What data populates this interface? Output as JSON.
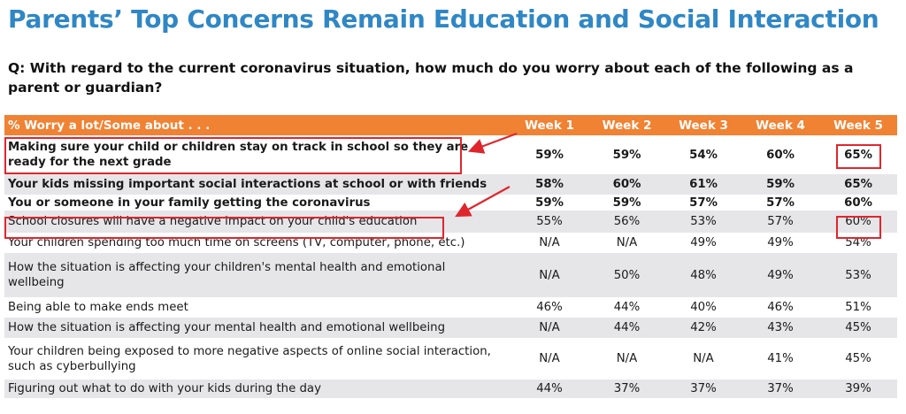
{
  "title": "Parents’ Top Concerns Remain Education and Social Interaction",
  "question": "Q: With regard to the current coronavirus situation, how much do you worry about each of the following as a parent or guardian?",
  "colors": {
    "title": "#2f87c5",
    "header_bg": "#f08234",
    "row_shade": "#e6e6e9",
    "highlight": "#e0262d"
  },
  "chart_data": {
    "type": "table",
    "header": "% Worry a lot/Some about . . .",
    "columns": [
      "Week 1",
      "Week 2",
      "Week 3",
      "Week 4",
      "Week 5"
    ],
    "rows": [
      {
        "label": "Making sure your child or children stay on track in school so they are ready for the next grade",
        "values": [
          "59%",
          "59%",
          "54%",
          "60%",
          "65%"
        ],
        "bold": true,
        "highlighted": true
      },
      {
        "label": "Your kids missing important social interactions at school or with friends",
        "values": [
          "58%",
          "60%",
          "61%",
          "59%",
          "65%"
        ],
        "bold": true,
        "highlighted": false
      },
      {
        "label": "You or someone in your family getting the coronavirus",
        "values": [
          "59%",
          "59%",
          "57%",
          "57%",
          "60%"
        ],
        "bold": true,
        "highlighted": false
      },
      {
        "label": "School closures will have a negative impact on your child's education",
        "values": [
          "55%",
          "56%",
          "53%",
          "57%",
          "60%"
        ],
        "bold": false,
        "highlighted": true
      },
      {
        "label": "Your children spending too much time on screens (TV, computer, phone, etc.)",
        "values": [
          "N/A",
          "N/A",
          "49%",
          "49%",
          "54%"
        ],
        "bold": false,
        "highlighted": false
      },
      {
        "label": "How the situation is affecting your children's mental health and emotional wellbeing",
        "values": [
          "N/A",
          "50%",
          "48%",
          "49%",
          "53%"
        ],
        "bold": false,
        "highlighted": false
      },
      {
        "label": "Being able to make ends meet",
        "values": [
          "46%",
          "44%",
          "40%",
          "46%",
          "51%"
        ],
        "bold": false,
        "highlighted": false
      },
      {
        "label": "How the situation is affecting your mental health and emotional wellbeing",
        "values": [
          "N/A",
          "44%",
          "42%",
          "43%",
          "45%"
        ],
        "bold": false,
        "highlighted": false
      },
      {
        "label": "Your children being exposed to more negative aspects of online social interaction, such as cyberbullying",
        "values": [
          "N/A",
          "N/A",
          "N/A",
          "41%",
          "45%"
        ],
        "bold": false,
        "highlighted": false
      },
      {
        "label": "Figuring out what to do with your kids during the day",
        "values": [
          "44%",
          "37%",
          "37%",
          "37%",
          "39%"
        ],
        "bold": false,
        "highlighted": false
      }
    ]
  }
}
